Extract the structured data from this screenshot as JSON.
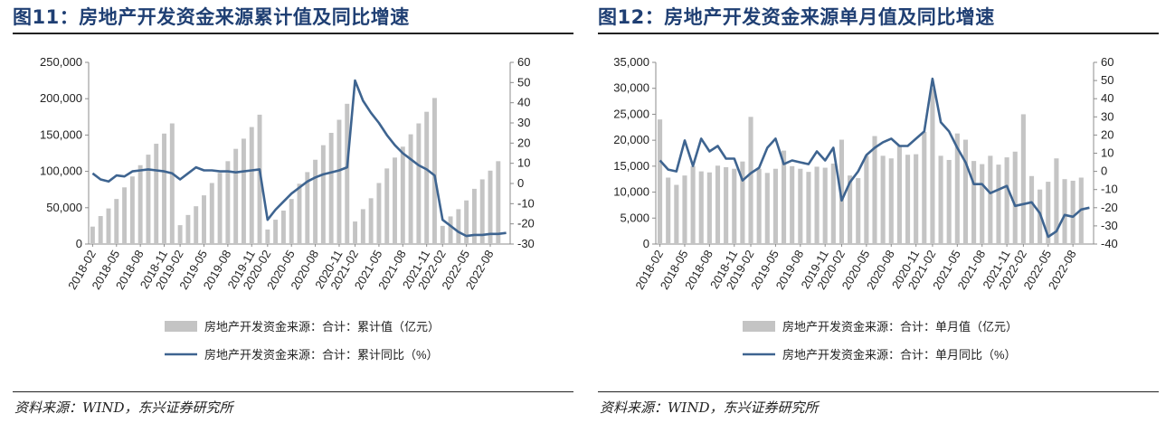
{
  "source_text": "资料来源：WIND，东兴证券研究所",
  "series_style": {
    "bar_color": "#c4c4c4",
    "line_color": "#3e6490"
  },
  "chart_data": [
    {
      "type": "bar+line",
      "title": "图11：房地产开发资金来源累计值及同比增速",
      "categories": [
        "2018-02",
        "2018-03",
        "2018-04",
        "2018-05",
        "2018-06",
        "2018-07",
        "2018-08",
        "2018-09",
        "2018-10",
        "2018-11",
        "2018-12",
        "2019-02",
        "2019-03",
        "2019-04",
        "2019-05",
        "2019-06",
        "2019-07",
        "2019-08",
        "2019-09",
        "2019-10",
        "2019-11",
        "2019-12",
        "2020-02",
        "2020-03",
        "2020-04",
        "2020-05",
        "2020-06",
        "2020-07",
        "2020-08",
        "2020-09",
        "2020-10",
        "2020-11",
        "2020-12",
        "2021-02",
        "2021-03",
        "2021-04",
        "2021-05",
        "2021-06",
        "2021-07",
        "2021-08",
        "2021-09",
        "2021-10",
        "2021-11",
        "2021-12",
        "2022-02",
        "2022-03",
        "2022-04",
        "2022-05",
        "2022-06",
        "2022-07",
        "2022-08",
        "2022-09",
        "2022-10"
      ],
      "x_tick_labels": [
        "2018-02",
        "2018-05",
        "2018-08",
        "2018-11",
        "2019-02",
        "2019-05",
        "2019-08",
        "2019-11",
        "2020-02",
        "2020-05",
        "2020-08",
        "2020-11",
        "2021-02",
        "2021-05",
        "2021-08",
        "2021-11",
        "2022-02",
        "2022-05",
        "2022-08"
      ],
      "left_axis": {
        "min": 0,
        "max": 250000,
        "ticks": [
          "0",
          "50,000",
          "100,000",
          "150,000",
          "200,000",
          "250,000"
        ]
      },
      "right_axis": {
        "min": -30,
        "max": 60,
        "ticks": [
          "-30",
          "-20",
          "-10",
          "0",
          "10",
          "20",
          "30",
          "40",
          "50",
          "60"
        ]
      },
      "grid": false,
      "legend_position": "bottom",
      "series": [
        {
          "name": "房地产开发资金来源：合计：累计值（亿元）",
          "type": "bar",
          "axis": "left",
          "values": [
            24000,
            38500,
            49000,
            62000,
            78000,
            93000,
            108500,
            123000,
            138000,
            152000,
            166000,
            26000,
            40000,
            52000,
            67000,
            84000,
            98000,
            114000,
            131000,
            145000,
            161000,
            178000,
            20000,
            33500,
            46000,
            62000,
            83000,
            99000,
            116000,
            136000,
            153000,
            171000,
            193000,
            31000,
            48000,
            63000,
            84000,
            104000,
            119000,
            134000,
            151000,
            166000,
            182000,
            201000,
            25000,
            38000,
            48000,
            60000,
            76000,
            89000,
            101000,
            114000,
            0
          ]
        },
        {
          "name": "房地产开发资金来源：合计：累计同比（%）",
          "type": "line",
          "axis": "right",
          "values": [
            5,
            2,
            1,
            4,
            3.5,
            6,
            6.5,
            7,
            6.5,
            6,
            5,
            2,
            5,
            8,
            6.5,
            6.5,
            6,
            6,
            5.5,
            6,
            6.5,
            7,
            -18,
            -13,
            -9,
            -5,
            -2,
            1,
            3,
            4.5,
            5.5,
            6.5,
            8,
            51,
            41,
            35,
            30,
            24,
            19,
            15,
            12,
            9,
            7,
            4,
            -18,
            -21,
            -24,
            -26,
            -25.5,
            -25.5,
            -25,
            -25,
            -24.5
          ]
        }
      ]
    },
    {
      "type": "bar+line",
      "title": "图12：房地产开发资金来源单月值及同比增速",
      "categories": [
        "2018-02",
        "2018-03",
        "2018-04",
        "2018-05",
        "2018-06",
        "2018-07",
        "2018-08",
        "2018-09",
        "2018-10",
        "2018-11",
        "2018-12",
        "2019-02",
        "2019-03",
        "2019-04",
        "2019-05",
        "2019-06",
        "2019-07",
        "2019-08",
        "2019-09",
        "2019-10",
        "2019-11",
        "2019-12",
        "2020-02",
        "2020-03",
        "2020-04",
        "2020-05",
        "2020-06",
        "2020-07",
        "2020-08",
        "2020-09",
        "2020-10",
        "2020-11",
        "2020-12",
        "2021-02",
        "2021-03",
        "2021-04",
        "2021-05",
        "2021-06",
        "2021-07",
        "2021-08",
        "2021-09",
        "2021-10",
        "2021-11",
        "2021-12",
        "2022-02",
        "2022-03",
        "2022-04",
        "2022-05",
        "2022-06",
        "2022-07",
        "2022-08",
        "2022-09",
        "2022-10"
      ],
      "x_tick_labels": [
        "2018-02",
        "2018-05",
        "2018-08",
        "2018-11",
        "2019-02",
        "2019-05",
        "2019-08",
        "2019-11",
        "2020-02",
        "2020-05",
        "2020-08",
        "2020-11",
        "2021-02",
        "2021-05",
        "2021-08",
        "2021-11",
        "2022-02",
        "2022-05",
        "2022-08"
      ],
      "left_axis": {
        "min": 0,
        "max": 35000,
        "ticks": [
          "0",
          "5,000",
          "10,000",
          "15,000",
          "20,000",
          "25,000",
          "30,000",
          "35,000"
        ]
      },
      "right_axis": {
        "min": -40,
        "max": 60,
        "ticks": [
          "-40",
          "-30",
          "-20",
          "-10",
          "0",
          "10",
          "20",
          "30",
          "40",
          "50",
          "60"
        ]
      },
      "grid": false,
      "legend_position": "bottom",
      "series": [
        {
          "name": "房地产开发资金来源：合计：单月值（亿元）",
          "type": "bar",
          "axis": "left",
          "values": [
            24000,
            12800,
            11400,
            13200,
            15000,
            14000,
            13800,
            15100,
            14800,
            14500,
            15900,
            24500,
            14500,
            13700,
            14500,
            18000,
            15000,
            14500,
            13900,
            14900,
            14700,
            15500,
            20100,
            13200,
            12700,
            17000,
            20800,
            17000,
            16500,
            19000,
            17200,
            17300,
            21600,
            30000,
            17000,
            16200,
            21300,
            20100,
            16000,
            15400,
            17000,
            15300,
            16700,
            17800,
            25000,
            13100,
            10500,
            12000,
            16500,
            12500,
            12200,
            12800,
            0
          ]
        },
        {
          "name": "房地产开发资金来源：合计：单月同比（%）",
          "type": "line",
          "axis": "right",
          "values": [
            6,
            1,
            0,
            17,
            3,
            18,
            11,
            14,
            7,
            7,
            -5,
            -1,
            2,
            13,
            18,
            4,
            6,
            5,
            4,
            11,
            6,
            13,
            -16,
            -6,
            0,
            9,
            13,
            16,
            18,
            14,
            14,
            18,
            22,
            51,
            27,
            22,
            13,
            5,
            -7,
            -7,
            -12,
            -10,
            -8,
            -19,
            -18,
            -17,
            -23,
            -36,
            -33,
            -24,
            -25,
            -21,
            -20
          ]
        }
      ]
    }
  ]
}
